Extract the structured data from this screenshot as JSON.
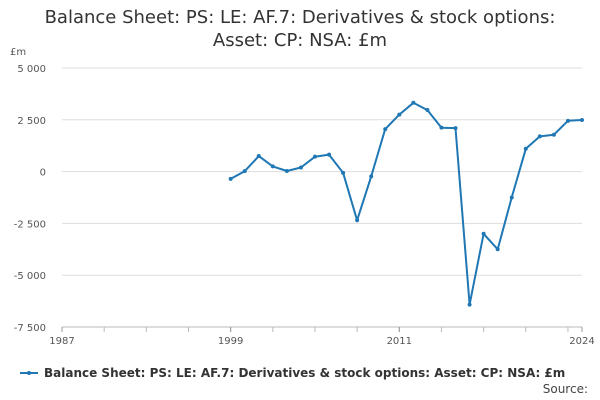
{
  "chart_data": {
    "type": "line",
    "title_line1": "Balance Sheet: PS: LE: AF.7: Derivatives & stock options:",
    "title_line2": "Asset: CP: NSA: £m",
    "ylabel": "£m",
    "xlabel": "",
    "ylim": [
      -7500,
      5000
    ],
    "xlim": [
      1987,
      2024
    ],
    "yticks": [
      5000,
      2500,
      0,
      -2500,
      -5000,
      -7500
    ],
    "ytick_labels": [
      "5 000",
      "2 500",
      "0",
      "-2 500",
      "-5 000",
      "-7 500"
    ],
    "xtick_labels": [
      {
        "year": 1987,
        "label": "1987"
      },
      {
        "year": 1999,
        "label": "1999"
      },
      {
        "year": 2011,
        "label": "2011"
      },
      {
        "year": 2024,
        "label": "2024"
      }
    ],
    "minor_xticks": [
      1987,
      1990,
      1993,
      1996,
      1999,
      2002,
      2005,
      2008,
      2011,
      2014,
      2017,
      2020,
      2023
    ],
    "grid": true,
    "legend_position": "bottom-left",
    "series": [
      {
        "name": "Balance Sheet: PS: LE: AF.7: Derivatives & stock options: Asset: CP: NSA: £m",
        "color": "#1f77b4",
        "x": [
          1999,
          2000,
          2001,
          2002,
          2003,
          2004,
          2005,
          2006,
          2007,
          2008,
          2009,
          2010,
          2011,
          2012,
          2013,
          2014,
          2015,
          2016,
          2017,
          2018,
          2019,
          2020,
          2021,
          2022,
          2023,
          2024
        ],
        "y": [
          -350,
          20,
          750,
          250,
          30,
          200,
          720,
          820,
          -60,
          -2350,
          -230,
          2050,
          2750,
          3320,
          2970,
          2120,
          2100,
          -6420,
          -3000,
          -3750,
          -1250,
          1100,
          1700,
          1780,
          2450,
          2490
        ]
      }
    ]
  },
  "legend": {
    "label": "Balance Sheet: PS: LE: AF.7: Derivatives & stock options: Asset: CP: NSA: £m"
  },
  "source": {
    "label": "Source:"
  }
}
